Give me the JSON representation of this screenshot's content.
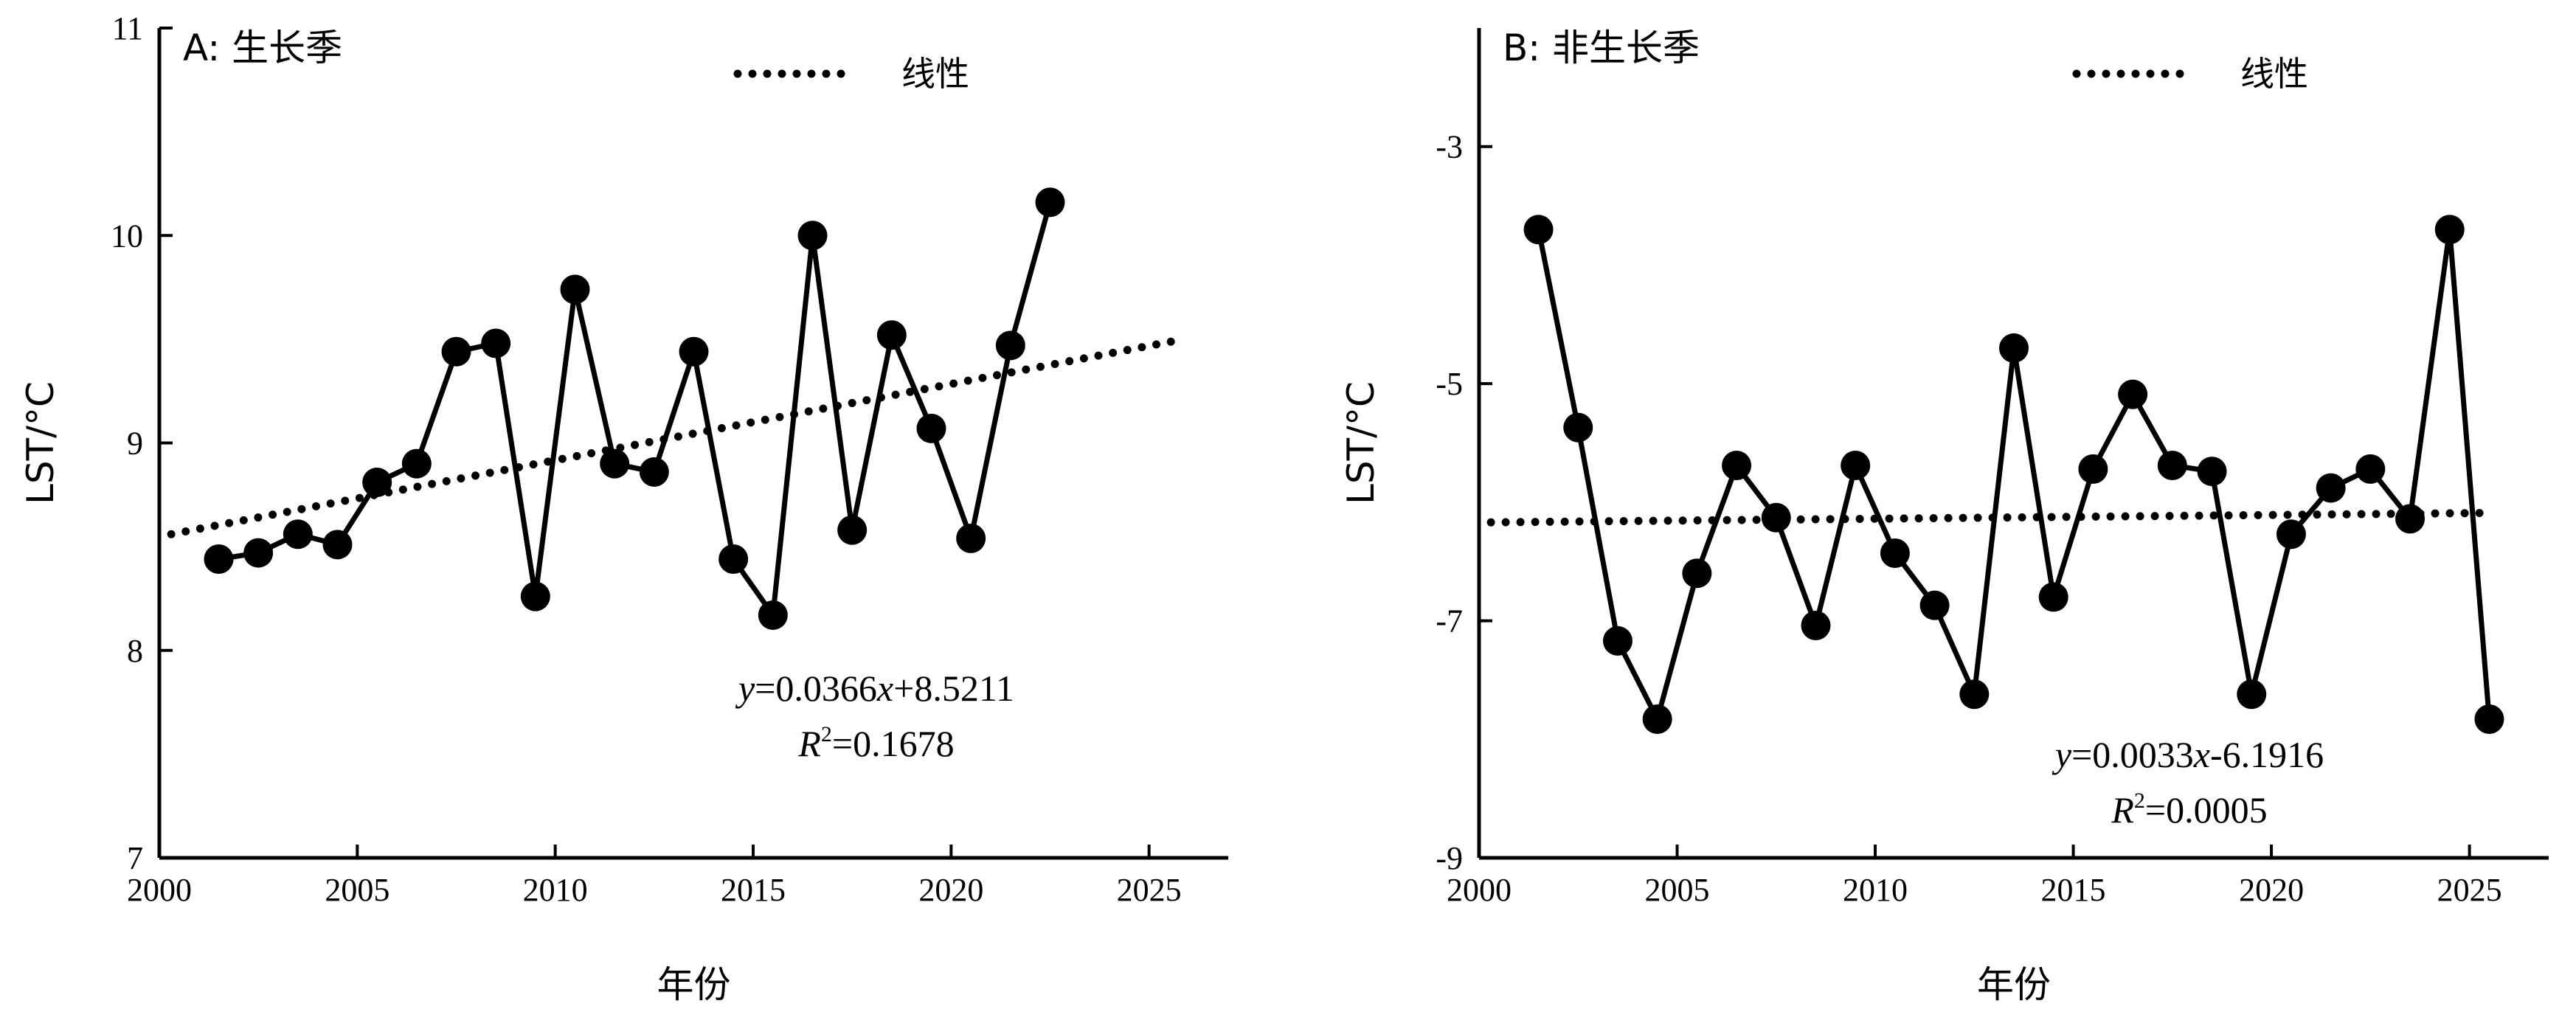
{
  "chart_data": [
    {
      "type": "line",
      "title": "A: 生长季",
      "xlabel": "年份",
      "ylabel": "LST/°C",
      "xlim": [
        2000,
        2027
      ],
      "ylim": [
        7,
        11
      ],
      "xticks": [
        2000,
        2005,
        2010,
        2015,
        2020,
        2025
      ],
      "yticks": [
        7,
        8,
        9,
        10,
        11
      ],
      "legend": {
        "label": "线性",
        "position": "top-center"
      },
      "series": [
        {
          "x": [
            2001.5,
            2002.5,
            2003.5,
            2004.5,
            2005.5,
            2006.5,
            2007.5,
            2008.5,
            2009.5,
            2010.5,
            2011.5,
            2012.5,
            2013.5,
            2014.5,
            2015.5,
            2016.5,
            2017.5,
            2018.5,
            2019.5,
            2020.5,
            2021.5,
            2022.5
          ],
          "values": [
            8.44,
            8.47,
            8.56,
            8.51,
            8.81,
            8.9,
            9.44,
            9.48,
            8.26,
            9.74,
            8.9,
            8.86,
            9.44,
            8.44,
            8.17,
            10.0,
            8.58,
            9.52,
            9.07,
            8.54,
            9.47,
            10.16
          ]
        }
      ],
      "trendline": {
        "label": "线性",
        "x_range": [
          2000.3,
          2025.6
        ],
        "y_range": [
          8.56,
          9.49
        ]
      },
      "annotation": {
        "equation": {
          "y": "y",
          "eq": "=0.0366",
          "x": "x",
          "rest": "+8.5211"
        },
        "r2": {
          "r": "R",
          "sup": "2",
          "rest": "=0.1678"
        }
      }
    },
    {
      "type": "line",
      "title": "B: 非生长季",
      "xlabel": "年份",
      "ylabel": "LST/°C",
      "xlim": [
        2000,
        2027
      ],
      "ylim": [
        -9,
        -2
      ],
      "xticks": [
        2000,
        2005,
        2010,
        2015,
        2020,
        2025
      ],
      "yticks": [
        -9,
        -7,
        -5,
        -3
      ],
      "ytick_labels": [
        "-9",
        "-7",
        "-5",
        "-3"
      ],
      "legend": {
        "label": "线性",
        "position": "top-center"
      },
      "series": [
        {
          "x": [
            2001.5,
            2002.5,
            2003.5,
            2004.5,
            2005.5,
            2006.5,
            2007.5,
            2008.5,
            2009.5,
            2010.5,
            2011.5,
            2012.5,
            2013.5,
            2014.5,
            2015.5,
            2016.5,
            2017.5,
            2018.5,
            2019.5,
            2020.5,
            2021.5,
            2022.5,
            2023.5,
            2024.5,
            2025.5
          ],
          "values": [
            -3.7,
            -5.37,
            -7.17,
            -7.83,
            -6.6,
            -5.69,
            -6.13,
            -7.04,
            -5.69,
            -6.43,
            -6.87,
            -7.62,
            -4.7,
            -6.8,
            -5.72,
            -5.09,
            -5.69,
            -5.74,
            -7.62,
            -6.27,
            -5.88,
            -5.72,
            -6.14,
            -3.7,
            -7.83
          ]
        }
      ],
      "trendline": {
        "label": "线性",
        "x_range": [
          2000.3,
          2025.6
        ],
        "y_range": [
          -6.17,
          -6.09
        ]
      },
      "annotation": {
        "equation": {
          "y": "y",
          "eq": "=0.0033",
          "x": "x",
          "rest": "-6.1916"
        },
        "r2": {
          "r": "R",
          "sup": "2",
          "rest": "=0.0005"
        }
      }
    }
  ]
}
